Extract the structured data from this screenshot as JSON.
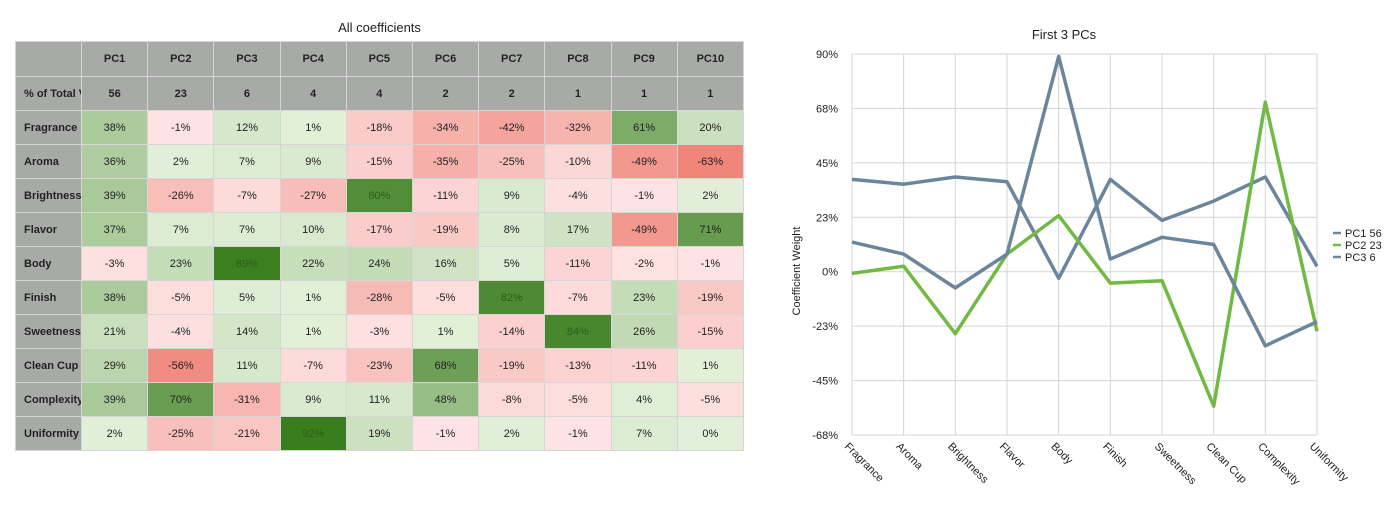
{
  "table": {
    "title": "All coefficients",
    "pcs": [
      "PC1",
      "PC2",
      "PC3",
      "PC4",
      "PC5",
      "PC6",
      "PC7",
      "PC8",
      "PC9",
      "PC10"
    ],
    "variance_label": "% of Total Variance",
    "variance": [
      "56",
      "23",
      "6",
      "4",
      "4",
      "2",
      "2",
      "1",
      "1",
      "1"
    ],
    "rows": [
      {
        "label": "Fragrance",
        "values": [
          38,
          -1,
          12,
          1,
          -18,
          -34,
          -42,
          -32,
          61,
          20
        ]
      },
      {
        "label": "Aroma",
        "values": [
          36,
          2,
          7,
          9,
          -15,
          -35,
          -25,
          -10,
          -49,
          -63
        ]
      },
      {
        "label": "Brightness",
        "values": [
          39,
          -26,
          -7,
          -27,
          80,
          -11,
          9,
          -4,
          -1,
          2
        ]
      },
      {
        "label": "Flavor",
        "values": [
          37,
          7,
          7,
          10,
          -17,
          -19,
          8,
          17,
          -49,
          71
        ]
      },
      {
        "label": "Body",
        "values": [
          -3,
          23,
          89,
          22,
          24,
          16,
          5,
          -11,
          -2,
          -1
        ]
      },
      {
        "label": "Finish",
        "values": [
          38,
          -5,
          5,
          1,
          -28,
          -5,
          82,
          -7,
          23,
          -19
        ]
      },
      {
        "label": "Sweetness",
        "values": [
          21,
          -4,
          14,
          1,
          -3,
          1,
          -14,
          84,
          26,
          -15
        ]
      },
      {
        "label": "Clean Cup",
        "values": [
          29,
          -56,
          11,
          -7,
          -23,
          68,
          -19,
          -13,
          -11,
          1
        ]
      },
      {
        "label": "Complexity",
        "values": [
          39,
          70,
          -31,
          9,
          11,
          48,
          -8,
          -5,
          4,
          -5
        ]
      },
      {
        "label": "Uniformity",
        "values": [
          2,
          -25,
          -21,
          92,
          19,
          -1,
          2,
          -1,
          7,
          0
        ]
      }
    ],
    "colors": {
      "pos_light": "#e2f0d9",
      "pos_dark": "#3a7d1e",
      "neg_light": "#fde4e4",
      "neg_dark": "#f0857a",
      "header": "#a8aaa8"
    }
  },
  "chart_data": {
    "type": "line",
    "title": "First 3 PCs",
    "ylabel": "Coefficient Weight",
    "xlabel": "",
    "categories": [
      "Fragrance",
      "Aroma",
      "Brightness",
      "Flavor",
      "Body",
      "Finish",
      "Sweetness",
      "Clean Cup",
      "Complexity",
      "Uniformity"
    ],
    "y_ticks": [
      "90%",
      "68%",
      "45%",
      "23%",
      "0%",
      "-23%",
      "-45%",
      "-68%"
    ],
    "ylim": [
      -68,
      90
    ],
    "grid": true,
    "legend_position": "right",
    "series": [
      {
        "name": "PC1 56",
        "color": "#6b859c",
        "values": [
          38,
          36,
          39,
          37,
          -3,
          38,
          21,
          29,
          39,
          2
        ]
      },
      {
        "name": "PC2 23",
        "color": "#71b942",
        "values": [
          -1,
          2,
          -26,
          7,
          23,
          -5,
          -4,
          -56,
          70,
          -25
        ]
      },
      {
        "name": "PC3 6",
        "color": "#6b859c",
        "values": [
          12,
          7,
          -7,
          7,
          89,
          5,
          14,
          11,
          -31,
          -21
        ]
      }
    ]
  }
}
